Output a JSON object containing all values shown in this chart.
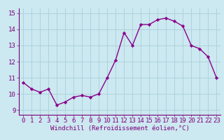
{
  "x": [
    0,
    1,
    2,
    3,
    4,
    5,
    6,
    7,
    8,
    9,
    10,
    11,
    12,
    13,
    14,
    15,
    16,
    17,
    18,
    19,
    20,
    21,
    22,
    23
  ],
  "y": [
    10.7,
    10.3,
    10.1,
    10.3,
    9.3,
    9.5,
    9.8,
    9.9,
    9.8,
    10.0,
    11.0,
    12.1,
    13.8,
    13.0,
    14.3,
    14.3,
    14.6,
    14.7,
    14.5,
    14.2,
    13.0,
    12.8,
    12.3,
    11.0
  ],
  "line_color": "#8b008b",
  "marker": "D",
  "marker_size": 2.2,
  "line_width": 1.0,
  "bg_color": "#cce8f0",
  "grid_color": "#aad0da",
  "xlabel": "Windchill (Refroidissement éolien,°C)",
  "xlabel_fontsize": 6.5,
  "tick_fontsize": 6.5,
  "tick_color": "#7b007b",
  "ylim": [
    8.7,
    15.3
  ],
  "yticks": [
    9,
    10,
    11,
    12,
    13,
    14,
    15
  ],
  "xticks": [
    0,
    1,
    2,
    3,
    4,
    5,
    6,
    7,
    8,
    9,
    10,
    11,
    12,
    13,
    14,
    15,
    16,
    17,
    18,
    19,
    20,
    21,
    22,
    23
  ],
  "spine_color": "#7b007b",
  "bottom_line_color": "#7b007b"
}
